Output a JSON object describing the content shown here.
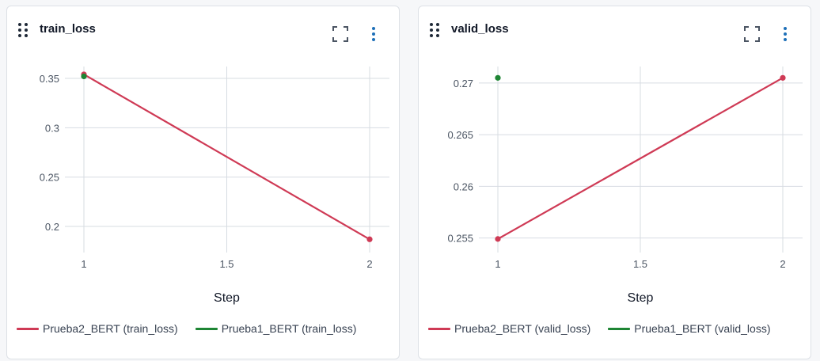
{
  "colors": {
    "series_a": "#cf3a55",
    "series_b": "#1e8534",
    "grid": "#d7dce2",
    "icon": "#4b5563",
    "menu": "#1d6fb8"
  },
  "icons": {
    "drag": "drag-handle-icon",
    "expand": "fullscreen-icon",
    "menu": "kebab-menu-icon"
  },
  "chart_data": [
    {
      "type": "line",
      "title": "train_loss",
      "xlabel": "Step",
      "ylabel": "",
      "x_ticks": [
        "1",
        "1.5",
        "2"
      ],
      "y_ticks": [
        "0.35",
        "0.3",
        "0.25",
        "0.2"
      ],
      "xlim": [
        1,
        2
      ],
      "ylim": [
        0.18,
        0.362
      ],
      "grid": true,
      "legend_position": "bottom",
      "series": [
        {
          "name": "Prueba2_BERT (train_loss)",
          "x": [
            1,
            2
          ],
          "y": [
            0.354,
            0.187
          ]
        },
        {
          "name": "Prueba1_BERT (train_loss)",
          "x": [
            1
          ],
          "y": [
            0.352
          ]
        }
      ]
    },
    {
      "type": "line",
      "title": "valid_loss",
      "xlabel": "Step",
      "ylabel": "",
      "x_ticks": [
        "1",
        "1.5",
        "2"
      ],
      "y_ticks": [
        "0.27",
        "0.265",
        "0.26",
        "0.255"
      ],
      "xlim": [
        1,
        2
      ],
      "ylim": [
        0.2542,
        0.2716
      ],
      "grid": true,
      "legend_position": "bottom",
      "series": [
        {
          "name": "Prueba2_BERT (valid_loss)",
          "x": [
            1,
            2
          ],
          "y": [
            0.2549,
            0.2705
          ]
        },
        {
          "name": "Prueba1_BERT (valid_loss)",
          "x": [
            1
          ],
          "y": [
            0.2705
          ]
        }
      ]
    }
  ]
}
